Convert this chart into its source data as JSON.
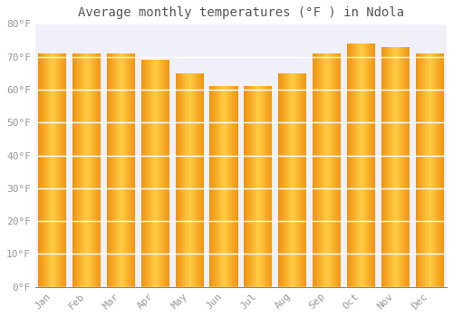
{
  "title": "Average monthly temperatures (°F ) in Ndola",
  "categories": [
    "Jan",
    "Feb",
    "Mar",
    "Apr",
    "May",
    "Jun",
    "Jul",
    "Aug",
    "Sep",
    "Oct",
    "Nov",
    "Dec"
  ],
  "values": [
    71,
    71,
    71,
    69,
    65,
    61,
    61,
    65,
    71,
    74,
    73,
    71
  ],
  "bar_color_left": "#F5A623",
  "bar_color_mid": "#FFCC44",
  "bar_color_right": "#F0A020",
  "background_color": "#FFFFFF",
  "plot_bg_color": "#F0F0F8",
  "ylim": [
    0,
    80
  ],
  "yticks": [
    0,
    10,
    20,
    30,
    40,
    50,
    60,
    70,
    80
  ],
  "ytick_labels": [
    "0°F",
    "10°F",
    "20°F",
    "30°F",
    "40°F",
    "50°F",
    "60°F",
    "70°F",
    "80°F"
  ],
  "grid_color": "#FFFFFF",
  "tick_label_color": "#999999",
  "title_color": "#555555",
  "title_fontsize": 10,
  "tick_fontsize": 8,
  "font_family": "monospace",
  "bar_width": 0.82
}
